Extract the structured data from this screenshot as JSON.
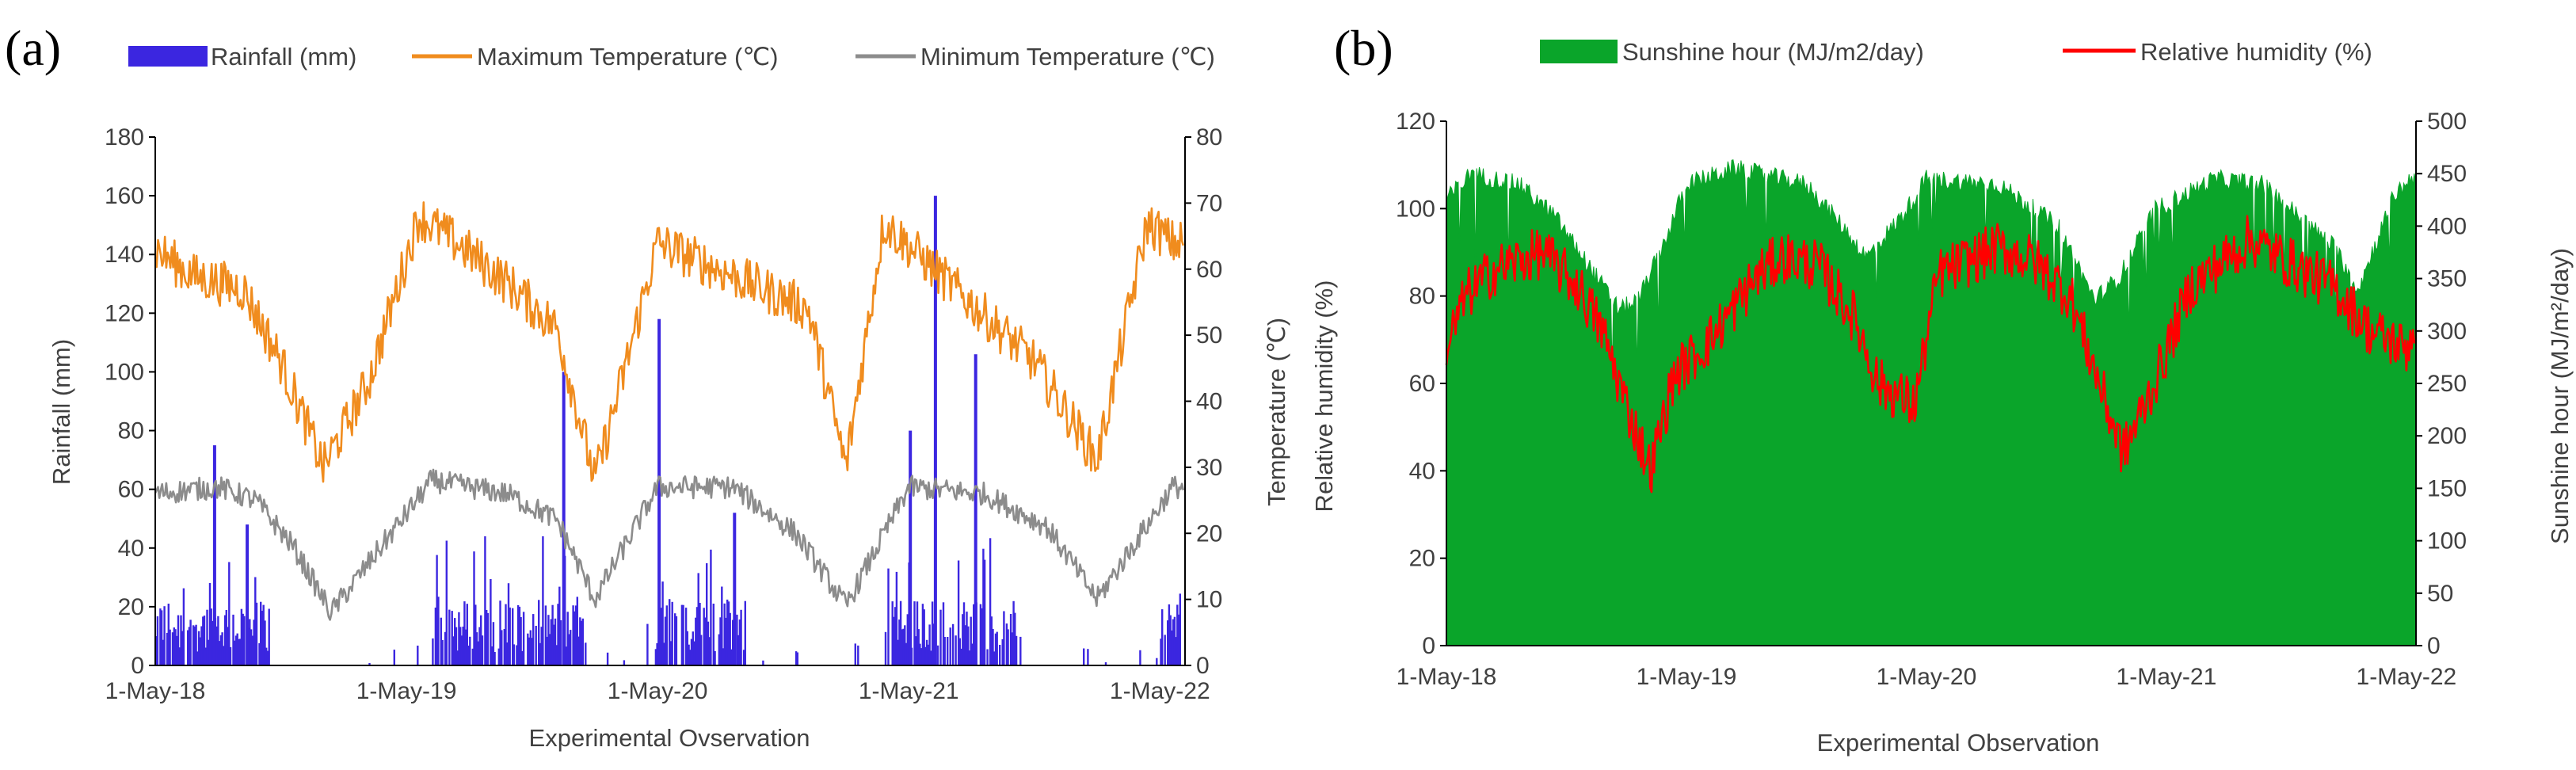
{
  "chart_data": [
    {
      "panel_label": "(a)",
      "type": "bar+line",
      "legend": {
        "placement": "top",
        "items": [
          "Rainfall (mm)",
          "Maximum  Temperature  (℃)",
          "Minimum  Temperature  (℃)"
        ]
      },
      "x_tick_labels": [
        "1-May-18",
        "1-May-19",
        "1-May-20",
        "1-May-21",
        "1-May-22"
      ],
      "xlabel": "Experimental  Ovservation",
      "y_left": {
        "label": "Rainfall (mm)",
        "min": 0,
        "max": 180,
        "ticks": [
          0,
          20,
          40,
          60,
          80,
          100,
          120,
          140,
          160,
          180
        ]
      },
      "y_right": {
        "label": "Temperature  (℃)",
        "min": 0,
        "max": 80,
        "ticks": [
          0,
          10,
          20,
          30,
          40,
          50,
          60,
          70,
          80
        ]
      },
      "x_range_years": [
        0,
        4.1
      ],
      "colors": {
        "rainfall": "#3b26e0",
        "max_temp": "#f08c1e",
        "min_temp": "#8c8c8c"
      },
      "rainfall_summary": {
        "notable_spikes_mm": [
          {
            "x_years": 0.23,
            "value": 75
          },
          {
            "x_years": 1.62,
            "value": 100
          },
          {
            "x_years": 2.0,
            "value": 118
          },
          {
            "x_years": 3.0,
            "value": 80
          },
          {
            "x_years": 3.1,
            "value": 160
          },
          {
            "x_years": 3.26,
            "value": 106
          },
          {
            "x_years": 0.36,
            "value": 48
          },
          {
            "x_years": 2.3,
            "value": 52
          }
        ],
        "wet_periods_years": [
          [
            0.0,
            0.45
          ],
          [
            1.1,
            1.7
          ],
          [
            1.95,
            2.35
          ],
          [
            2.9,
            3.45
          ],
          [
            4.0,
            4.08
          ]
        ],
        "typical_wet_level_mm": 15
      },
      "max_temperature_profile_c": {
        "x_years": [
          0.0,
          0.15,
          0.35,
          0.5,
          0.67,
          0.85,
          1.05,
          1.2,
          1.4,
          1.6,
          1.75,
          1.85,
          2.0,
          2.3,
          2.6,
          2.75,
          2.9,
          3.1,
          3.5,
          3.75,
          3.95,
          4.05
        ],
        "values": [
          63,
          59,
          57,
          46,
          30,
          43,
          68,
          64,
          58,
          51,
          28,
          42,
          64,
          59,
          54,
          30,
          67,
          60,
          46,
          31,
          67,
          64
        ]
      },
      "min_temperature_profile_c": {
        "x_years": [
          0.0,
          0.25,
          0.4,
          0.55,
          0.7,
          0.9,
          1.1,
          1.4,
          1.6,
          1.75,
          2.0,
          2.3,
          2.55,
          2.75,
          3.0,
          3.3,
          3.55,
          3.75,
          4.05
        ],
        "values": [
          26,
          27,
          25,
          18,
          8,
          18,
          28,
          26,
          22,
          10,
          27,
          27,
          20,
          9,
          27,
          26,
          21,
          10,
          27
        ]
      }
    },
    {
      "panel_label": "(b)",
      "type": "area+line",
      "legend": {
        "placement": "top",
        "items": [
          "Sunshine hour (MJ/m2/day)",
          "Relative humidity (%)"
        ]
      },
      "x_tick_labels": [
        "1-May-18",
        "1-May-19",
        "1-May-20",
        "1-May-21",
        "1-May-22"
      ],
      "xlabel": "Experimental  Observation",
      "y_left": {
        "label": "Relative  humidity  (%)",
        "min": 0,
        "max": 120,
        "ticks": [
          0,
          20,
          40,
          60,
          80,
          100,
          120
        ]
      },
      "y_right": {
        "label": "Sunshine hour  (MJ/m²/day)",
        "min": 0,
        "max": 500,
        "ticks": [
          0,
          50,
          100,
          150,
          200,
          250,
          300,
          350,
          400,
          450,
          500
        ]
      },
      "x_range_years": [
        0,
        4.04
      ],
      "colors": {
        "sunshine": "#0aa52a",
        "humidity": "#ff0000"
      },
      "sunshine_profile": {
        "x_years": [
          0.0,
          0.1,
          0.3,
          0.45,
          0.6,
          0.72,
          0.8,
          0.9,
          1.0,
          1.2,
          1.5,
          1.65,
          1.75,
          1.9,
          2.0,
          2.3,
          2.55,
          2.7,
          2.8,
          2.95,
          3.2,
          3.4,
          3.55,
          3.7,
          3.8,
          3.95,
          4.04
        ],
        "values": [
          425,
          450,
          440,
          410,
          360,
          320,
          330,
          380,
          440,
          455,
          440,
          400,
          370,
          410,
          445,
          440,
          400,
          330,
          350,
          415,
          445,
          440,
          410,
          380,
          340,
          430,
          450
        ]
      },
      "humidity_profile": {
        "x_years": [
          0.0,
          0.08,
          0.2,
          0.4,
          0.55,
          0.65,
          0.75,
          0.85,
          0.95,
          1.1,
          1.3,
          1.4,
          1.55,
          1.7,
          1.8,
          1.95,
          2.05,
          2.3,
          2.45,
          2.6,
          2.75,
          2.82,
          2.95,
          3.1,
          3.35,
          3.5,
          3.7,
          3.85,
          4.0,
          4.04
        ],
        "values": [
          68,
          80,
          86,
          90,
          82,
          72,
          55,
          40,
          62,
          70,
          85,
          89,
          87,
          75,
          60,
          55,
          85,
          91,
          88,
          80,
          55,
          44,
          60,
          82,
          93,
          88,
          82,
          72,
          68,
          74
        ]
      }
    }
  ]
}
